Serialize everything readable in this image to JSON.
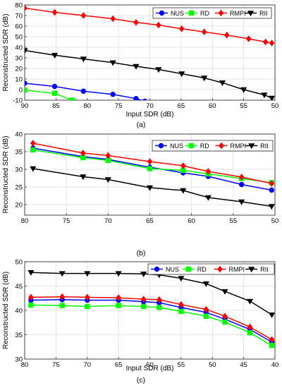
{
  "chart_data": [
    {
      "type": "line",
      "panel_label": "(a)",
      "xlabel": "Input SDR (dB)",
      "ylabel": "Reconstructed SDR (dB)",
      "xlim": [
        90,
        50
      ],
      "ylim": [
        -10,
        80
      ],
      "x_reversed": true,
      "x_ticks": [
        90,
        85,
        80,
        75,
        70,
        65,
        60,
        55,
        50
      ],
      "y_ticks": [
        -10,
        0,
        10,
        20,
        30,
        40,
        50,
        60,
        70,
        80
      ],
      "grid": true,
      "legend": {
        "placement": "top-right",
        "orientation": "horizontal"
      },
      "series": [
        {
          "name": "NUS",
          "color": "#0000ff",
          "marker": "circle",
          "points": [
            [
              90,
              6
            ],
            [
              85.2,
              3
            ],
            [
              80.6,
              -1.5
            ],
            [
              75.9,
              -4.5
            ],
            [
              72.2,
              -8.5
            ],
            [
              70.8,
              -11
            ]
          ]
        },
        {
          "name": "RD",
          "color": "#00ff00",
          "marker": "square",
          "points": [
            [
              90,
              -0.5
            ],
            [
              85.2,
              -3.5
            ],
            [
              82.5,
              -10
            ],
            [
              82.2,
              -11
            ]
          ]
        },
        {
          "name": "RMPI",
          "color": "#ff0000",
          "marker": "diamond",
          "points": [
            [
              90,
              77
            ],
            [
              85.2,
              73
            ],
            [
              80.6,
              70
            ],
            [
              75.9,
              67
            ],
            [
              72.2,
              63.5
            ],
            [
              68.6,
              61
            ],
            [
              64.9,
              57.5
            ],
            [
              61.3,
              54.5
            ],
            [
              57.7,
              51.5
            ],
            [
              54.2,
              48
            ],
            [
              51.5,
              45
            ],
            [
              50.5,
              44
            ]
          ]
        },
        {
          "name": "RII",
          "color": "#000000",
          "marker": "triangle-down",
          "points": [
            [
              90,
              37
            ],
            [
              85.2,
              32.5
            ],
            [
              80.6,
              29
            ],
            [
              75.9,
              25.5
            ],
            [
              72.2,
              22
            ],
            [
              68.6,
              19
            ],
            [
              64.9,
              15
            ],
            [
              61.3,
              11
            ],
            [
              58.4,
              6.5
            ],
            [
              55,
              0
            ],
            [
              51.7,
              -5
            ],
            [
              50.5,
              -8
            ]
          ]
        }
      ]
    },
    {
      "type": "line",
      "panel_label": "(b)",
      "xlabel": "Input SDR (dB)",
      "ylabel": "Reconstructed SDR (dB)",
      "xlim": [
        80,
        50
      ],
      "ylim": [
        17,
        40
      ],
      "x_reversed": true,
      "x_ticks": [
        80,
        75,
        70,
        65,
        60,
        55,
        50
      ],
      "y_ticks": [
        20,
        25,
        30,
        35,
        40
      ],
      "grid": true,
      "legend": {
        "placement": "top-right",
        "orientation": "horizontal"
      },
      "series": [
        {
          "name": "NUS",
          "color": "#0000ff",
          "marker": "circle",
          "points": [
            [
              79,
              36
            ],
            [
              73,
              33.6
            ],
            [
              70,
              32.8
            ],
            [
              65,
              30.6
            ],
            [
              61,
              29
            ],
            [
              58,
              28
            ],
            [
              54,
              25.7
            ],
            [
              50.4,
              24.1
            ]
          ]
        },
        {
          "name": "RD",
          "color": "#00ff00",
          "marker": "square",
          "points": [
            [
              79,
              35.5
            ],
            [
              73,
              33.3
            ],
            [
              70,
              32.5
            ],
            [
              65,
              30.2
            ],
            [
              61,
              29.7
            ],
            [
              58,
              28.7
            ],
            [
              54,
              27.4
            ],
            [
              50.4,
              26.2
            ]
          ]
        },
        {
          "name": "RMPI",
          "color": "#ff0000",
          "marker": "diamond",
          "points": [
            [
              79,
              37.4
            ],
            [
              73,
              34.6
            ],
            [
              70,
              33.9
            ],
            [
              65,
              32.2
            ],
            [
              61,
              31
            ],
            [
              58,
              29.4
            ],
            [
              54,
              27.8
            ],
            [
              50.4,
              26
            ]
          ]
        },
        {
          "name": "RII",
          "color": "#000000",
          "marker": "triangle-down",
          "points": [
            [
              79,
              30.2
            ],
            [
              73,
              27.9
            ],
            [
              70,
              27.1
            ],
            [
              65,
              24.8
            ],
            [
              61,
              24
            ],
            [
              58,
              22
            ],
            [
              54,
              20.8
            ],
            [
              50.4,
              19.5
            ]
          ]
        }
      ]
    },
    {
      "type": "line",
      "panel_label": "(c)",
      "xlabel": "Input SDR (dB)",
      "ylabel": "Reconstructed SDR (dB)",
      "xlim": [
        80,
        40
      ],
      "ylim": [
        30,
        50
      ],
      "x_reversed": true,
      "x_ticks": [
        80,
        75,
        70,
        65,
        60,
        55,
        50,
        45,
        40
      ],
      "y_ticks": [
        30,
        35,
        40,
        45,
        50
      ],
      "grid": true,
      "legend": {
        "placement": "top-right",
        "orientation": "horizontal"
      },
      "series": [
        {
          "name": "NUS",
          "color": "#0000ff",
          "marker": "circle",
          "points": [
            [
              79,
              42.1
            ],
            [
              74,
              42.2
            ],
            [
              70,
              42.1
            ],
            [
              65,
              42.1
            ],
            [
              61,
              41.8
            ],
            [
              58.5,
              41.6
            ],
            [
              55,
              40.6
            ],
            [
              51,
              39.6
            ],
            [
              48,
              38.2
            ],
            [
              44,
              36.1
            ],
            [
              40.5,
              33.5
            ]
          ]
        },
        {
          "name": "RD",
          "color": "#00ff00",
          "marker": "square",
          "points": [
            [
              79,
              41.1
            ],
            [
              74,
              41
            ],
            [
              70,
              40.8
            ],
            [
              65,
              41
            ],
            [
              61,
              40.8
            ],
            [
              58.5,
              40.6
            ],
            [
              55,
              39.8
            ],
            [
              51,
              38.8
            ],
            [
              48,
              37.6
            ],
            [
              44,
              35.4
            ],
            [
              40.5,
              32.8
            ]
          ]
        },
        {
          "name": "RMPI",
          "color": "#ff0000",
          "marker": "diamond",
          "points": [
            [
              79,
              42.7
            ],
            [
              74,
              42.8
            ],
            [
              70,
              42.7
            ],
            [
              65,
              42.6
            ],
            [
              61,
              42.3
            ],
            [
              58.5,
              42.2
            ],
            [
              55,
              41.2
            ],
            [
              51,
              40.2
            ],
            [
              48,
              38.8
            ],
            [
              44,
              36.6
            ],
            [
              40.5,
              34
            ]
          ]
        },
        {
          "name": "RII",
          "color": "#000000",
          "marker": "triangle-down",
          "points": [
            [
              79,
              47.8
            ],
            [
              74,
              47.6
            ],
            [
              70,
              47.6
            ],
            [
              65,
              47.6
            ],
            [
              61,
              47.5
            ],
            [
              58.5,
              47.3
            ],
            [
              55,
              46.6
            ],
            [
              51,
              45.5
            ],
            [
              48,
              43.9
            ],
            [
              44,
              41.9
            ],
            [
              40.5,
              39.1
            ]
          ]
        }
      ]
    }
  ]
}
